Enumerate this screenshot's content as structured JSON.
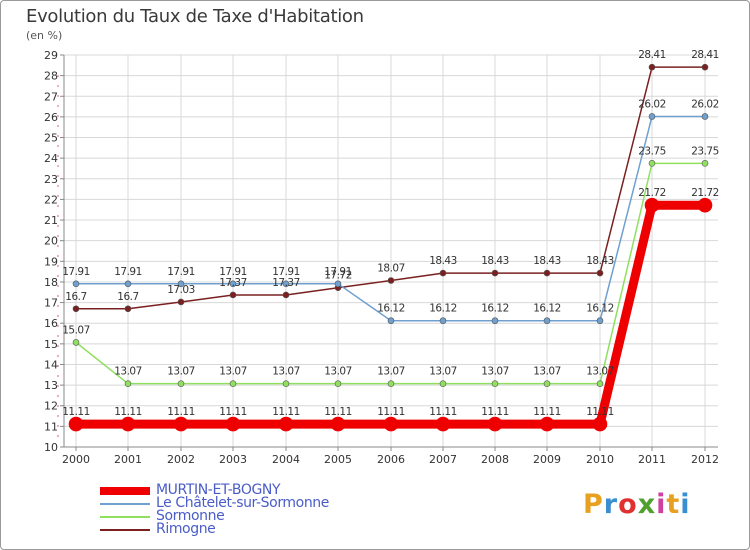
{
  "title": "Evolution du Taux de Taxe d'Habitation",
  "subtitle": "(en %)",
  "logo": {
    "text": "Proxiti",
    "colors": [
      "#e8a020",
      "#3a8fd0",
      "#e03030",
      "#50a030",
      "#d040a0",
      "#e8a020",
      "#3a8fd0"
    ]
  },
  "chart_data": {
    "type": "line",
    "x": [
      "2000",
      "2001",
      "2002",
      "2003",
      "2004",
      "2005",
      "2006",
      "2007",
      "2008",
      "2009",
      "2010",
      "2011",
      "2012"
    ],
    "ylim": [
      10,
      29
    ],
    "yticks": [
      10,
      11,
      12,
      13,
      14,
      15,
      16,
      17,
      18,
      19,
      20,
      21,
      22,
      23,
      24,
      25,
      26,
      27,
      28,
      29
    ],
    "grid": true,
    "legend_position": "bottom-left",
    "series": [
      {
        "name": "MURTIN-ET-BOGNY",
        "color": "#ee0000",
        "width": 9,
        "values": [
          11.11,
          11.11,
          11.11,
          11.11,
          11.11,
          11.11,
          11.11,
          11.11,
          11.11,
          11.11,
          11.11,
          21.72,
          21.72
        ],
        "labels": [
          "11.11",
          "11.11",
          "11.11",
          "11.11",
          "11.11",
          "11.11",
          "11.11",
          "11.11",
          "11.11",
          "11.11",
          "11.11",
          "21.72",
          "21.72"
        ]
      },
      {
        "name": "Le Châtelet-sur-Sormonne",
        "color": "#6fa0d0",
        "width": 1.5,
        "values": [
          17.91,
          17.91,
          17.91,
          17.91,
          17.91,
          17.91,
          16.12,
          16.12,
          16.12,
          16.12,
          16.12,
          26.02,
          26.02
        ],
        "labels": [
          "17.91",
          "17.91",
          "17.91",
          "17.91",
          "17.91",
          "17.91",
          "16.12",
          "16.12",
          "16.12",
          "16.12",
          "16.12",
          "26.02",
          "26.02"
        ]
      },
      {
        "name": "Sormonne",
        "color": "#90e060",
        "width": 1.5,
        "values": [
          15.07,
          13.07,
          13.07,
          13.07,
          13.07,
          13.07,
          13.07,
          13.07,
          13.07,
          13.07,
          13.07,
          23.75,
          23.75
        ],
        "labels": [
          "15.07",
          "13.07",
          "13.07",
          "13.07",
          "13.07",
          "13.07",
          "13.07",
          "13.07",
          "13.07",
          "13.07",
          "13.07",
          "23.75",
          "23.75"
        ]
      },
      {
        "name": "Rimogne",
        "color": "#7a2020",
        "width": 1.5,
        "values": [
          16.7,
          16.7,
          17.03,
          17.37,
          17.37,
          17.72,
          18.07,
          18.43,
          18.43,
          18.43,
          18.43,
          28.41,
          28.41
        ],
        "labels": [
          "16.7",
          "16.7",
          "17.03",
          "17.37",
          "17.37",
          "17.72",
          "18.07",
          "18.43",
          "18.43",
          "18.43",
          "18.43",
          "28.41",
          "28.41"
        ]
      }
    ]
  }
}
